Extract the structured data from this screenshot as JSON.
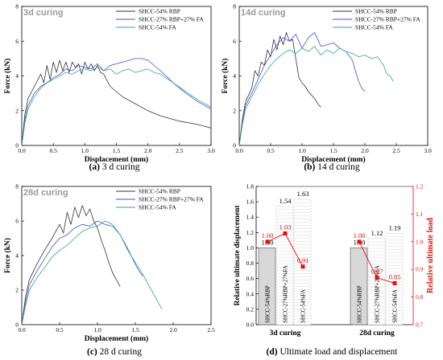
{
  "colors": {
    "rbp": "#333333",
    "mix": "#4a4ae6",
    "fa": "#2aa88a",
    "red": "#e01010",
    "bar_fill": "#d8d8d8"
  },
  "panels": {
    "a": {
      "title": "3d curing",
      "caption_letter": "(a)",
      "caption_text": " 3 d curing"
    },
    "b": {
      "title": "14d curing",
      "caption_letter": "(b)",
      "caption_text": " 14 d curing"
    },
    "c": {
      "title": "28d curing",
      "caption_letter": "(c)",
      "caption_text": " 28 d curing"
    },
    "d": {
      "caption_letter": "(d)",
      "caption_text": " Ultimate load and displacement"
    }
  },
  "chart_data": [
    {
      "id": "a",
      "type": "line",
      "title": "3d curing",
      "xlabel": "Displacement (mm)",
      "ylabel": "Force (kN)",
      "xlim": [
        0,
        3.0
      ],
      "ylim": [
        0,
        8
      ],
      "xticks": [
        "0.0",
        "0.5",
        "1.0",
        "1.5",
        "2.0",
        "2.5",
        "3.0"
      ],
      "yticks": [
        "0",
        "2",
        "4",
        "6",
        "8"
      ],
      "legend": "top-right",
      "series": [
        {
          "name": "SHCC-54% RBP",
          "color": "#333333",
          "x": [
            0,
            0.05,
            0.1,
            0.2,
            0.3,
            0.35,
            0.4,
            0.45,
            0.5,
            0.55,
            0.6,
            0.65,
            0.7,
            0.75,
            0.8,
            0.85,
            0.9,
            0.95,
            1.0,
            1.05,
            1.1,
            1.15,
            1.2,
            1.25,
            1.3,
            1.4,
            1.6,
            1.8,
            2.0,
            2.2,
            2.5,
            2.8,
            3.0
          ],
          "y": [
            0,
            1.8,
            2.7,
            3.4,
            4.1,
            3.6,
            4.6,
            3.8,
            4.8,
            4.2,
            4.9,
            4.3,
            4.8,
            4.2,
            4.8,
            4.5,
            4.7,
            4.1,
            4.8,
            4.4,
            4.7,
            4.3,
            4.6,
            4.2,
            4.1,
            3.4,
            2.8,
            2.4,
            2.0,
            1.7,
            1.4,
            1.2,
            1.0
          ]
        },
        {
          "name": "SHCC-27% RBP+27% FA",
          "color": "#4a4ae6",
          "x": [
            0,
            0.05,
            0.1,
            0.2,
            0.3,
            0.4,
            0.5,
            0.6,
            0.7,
            0.8,
            0.9,
            1.0,
            1.1,
            1.2,
            1.3,
            1.4,
            1.5,
            1.6,
            1.7,
            1.8,
            1.9,
            2.0,
            2.2,
            2.4,
            2.6,
            2.8,
            3.0
          ],
          "y": [
            0,
            1.5,
            2.3,
            3.0,
            3.4,
            3.6,
            3.9,
            4.1,
            4.4,
            4.3,
            4.6,
            4.5,
            4.4,
            4.7,
            4.3,
            4.6,
            4.7,
            4.8,
            4.9,
            5.0,
            5.0,
            4.9,
            4.3,
            3.6,
            3.0,
            2.5,
            2.1
          ]
        },
        {
          "name": "SHCC-54% FA",
          "color": "#2aa88a",
          "x": [
            0,
            0.05,
            0.1,
            0.2,
            0.3,
            0.4,
            0.5,
            0.6,
            0.7,
            0.8,
            0.9,
            1.0,
            1.1,
            1.2,
            1.3,
            1.4,
            1.5,
            1.6,
            1.7,
            1.8,
            1.9,
            2.0,
            2.1,
            2.2,
            2.4,
            2.6,
            2.8,
            3.0
          ],
          "y": [
            0,
            1.3,
            2.1,
            2.8,
            3.3,
            3.6,
            3.8,
            4.0,
            4.2,
            4.1,
            4.3,
            4.4,
            4.3,
            4.5,
            4.3,
            4.4,
            4.1,
            4.3,
            4.4,
            4.2,
            4.3,
            4.4,
            4.2,
            4.1,
            3.6,
            3.1,
            2.6,
            2.2
          ]
        }
      ]
    },
    {
      "id": "b",
      "type": "line",
      "title": "14d curing",
      "xlabel": "Displacement (mm)",
      "ylabel": "Force (kN)",
      "xlim": [
        0,
        3.0
      ],
      "ylim": [
        0,
        8
      ],
      "xticks": [
        "0.0",
        "0.5",
        "1.0",
        "1.5",
        "2.0",
        "2.5",
        "3.0"
      ],
      "yticks": [
        "0",
        "2",
        "4",
        "6",
        "8"
      ],
      "legend": "top-right",
      "series": [
        {
          "name": "SHCC-54% RBP",
          "color": "#333333",
          "x": [
            0,
            0.05,
            0.1,
            0.2,
            0.25,
            0.3,
            0.35,
            0.4,
            0.45,
            0.5,
            0.55,
            0.6,
            0.65,
            0.7,
            0.75,
            0.8,
            0.85,
            0.9,
            0.95,
            1.0,
            1.05,
            1.1,
            1.15,
            1.2,
            1.25,
            1.3
          ],
          "y": [
            0,
            1.5,
            2.5,
            3.3,
            4.3,
            4.0,
            4.8,
            4.6,
            5.5,
            5.1,
            6.1,
            5.5,
            6.3,
            5.8,
            6.5,
            6.0,
            6.1,
            5.0,
            3.9,
            3.6,
            3.4,
            3.1,
            2.9,
            2.7,
            2.4,
            2.2
          ]
        },
        {
          "name": "SHCC-27% RBP+27% FA",
          "color": "#4a4ae6",
          "x": [
            0,
            0.05,
            0.1,
            0.2,
            0.3,
            0.4,
            0.5,
            0.6,
            0.7,
            0.8,
            0.9,
            1.0,
            1.1,
            1.2,
            1.3,
            1.4,
            1.5,
            1.6,
            1.7,
            1.8,
            1.85,
            1.9,
            1.95,
            2.0
          ],
          "y": [
            0,
            1.3,
            2.3,
            3.0,
            3.8,
            4.6,
            5.2,
            5.8,
            6.2,
            6.0,
            6.4,
            5.6,
            6.2,
            6.5,
            5.7,
            5.8,
            5.9,
            5.6,
            5.4,
            4.9,
            4.3,
            3.7,
            3.3,
            3.1
          ]
        },
        {
          "name": "SHCC-54% FA",
          "color": "#2aa88a",
          "x": [
            0,
            0.05,
            0.1,
            0.2,
            0.3,
            0.4,
            0.5,
            0.6,
            0.7,
            0.8,
            0.9,
            1.0,
            1.1,
            1.2,
            1.3,
            1.4,
            1.5,
            1.6,
            1.7,
            1.8,
            1.9,
            2.0,
            2.1,
            2.2,
            2.3,
            2.35,
            2.4,
            2.45
          ],
          "y": [
            0,
            1.2,
            2.1,
            2.8,
            3.5,
            4.1,
            4.6,
            5.0,
            5.3,
            5.5,
            5.3,
            5.6,
            5.4,
            5.7,
            5.2,
            5.5,
            5.3,
            5.6,
            5.4,
            5.3,
            5.1,
            5.2,
            5.0,
            5.1,
            4.6,
            4.1,
            4.0,
            3.7
          ]
        }
      ]
    },
    {
      "id": "c",
      "type": "line",
      "title": "28d curing",
      "xlabel": "Displacement (mm)",
      "ylabel": "Force (kN)",
      "xlim": [
        0,
        2.5
      ],
      "ylim": [
        0,
        8
      ],
      "xticks": [
        "0.0",
        "0.5",
        "1.0",
        "1.5",
        "2.0",
        "2.5"
      ],
      "yticks": [
        "0",
        "2",
        "4",
        "6",
        "8"
      ],
      "legend": "top-right",
      "series": [
        {
          "name": "SHCC-54% RBP",
          "color": "#333333",
          "x": [
            0,
            0.05,
            0.1,
            0.2,
            0.3,
            0.4,
            0.5,
            0.55,
            0.6,
            0.65,
            0.7,
            0.75,
            0.8,
            0.85,
            0.9,
            0.95,
            1.0,
            1.05,
            1.1,
            1.15,
            1.2,
            1.25,
            1.3
          ],
          "y": [
            0,
            1.6,
            2.6,
            3.5,
            4.3,
            5.0,
            5.8,
            5.3,
            6.5,
            5.8,
            6.8,
            6.2,
            6.9,
            6.3,
            6.7,
            6.0,
            5.6,
            4.9,
            4.3,
            3.6,
            3.0,
            2.6,
            2.2
          ]
        },
        {
          "name": "SHCC-27% RBP+27% FA",
          "color": "#4a4ae6",
          "x": [
            0,
            0.05,
            0.1,
            0.2,
            0.3,
            0.4,
            0.5,
            0.6,
            0.7,
            0.8,
            0.9,
            1.0,
            1.1,
            1.2,
            1.3,
            1.4,
            1.5,
            1.55,
            1.6
          ],
          "y": [
            0,
            1.3,
            2.3,
            3.1,
            3.8,
            4.5,
            5.0,
            5.2,
            5.6,
            5.8,
            5.7,
            6.0,
            5.8,
            5.7,
            5.2,
            4.4,
            3.5,
            3.1,
            2.8
          ]
        },
        {
          "name": "SHCC-54% FA",
          "color": "#2aa88a",
          "x": [
            0,
            0.05,
            0.1,
            0.2,
            0.3,
            0.4,
            0.5,
            0.6,
            0.7,
            0.8,
            0.9,
            1.0,
            1.1,
            1.2,
            1.3,
            1.4,
            1.5,
            1.6,
            1.7,
            1.8,
            1.85
          ],
          "y": [
            0,
            1.1,
            2.0,
            2.7,
            3.3,
            3.9,
            4.3,
            4.6,
            5.0,
            5.4,
            5.6,
            5.7,
            6.0,
            5.8,
            5.2,
            4.3,
            3.6,
            2.9,
            2.1,
            1.3,
            0.9
          ]
        }
      ]
    },
    {
      "id": "d",
      "type": "bar",
      "title": "",
      "ylabel_left": "Relative ultimate displacement",
      "ylabel_right": "Relative ultimate load",
      "ylim_left": [
        0,
        1.8
      ],
      "ylim_right": [
        0.7,
        1.2
      ],
      "yticks_left": [
        "0.0",
        "0.2",
        "0.4",
        "0.6",
        "0.8",
        "1.0",
        "1.2",
        "1.4",
        "1.6",
        "1.8"
      ],
      "yticks_right": [
        "0.7",
        "0.8",
        "0.9",
        "1.0",
        "1.1",
        "1.2"
      ],
      "groups": [
        {
          "label": "3d curing",
          "bar_labels": [
            "SHCC-54%RBP",
            "SHCC-27%RBP+27%FA",
            "SHCC-54%FA"
          ],
          "displacement": [
            1.0,
            1.54,
            1.63
          ],
          "displacement_labels": [
            "1.00",
            "1.54",
            "1.63"
          ],
          "load": [
            1.0,
            1.03,
            0.91
          ],
          "load_labels": [
            "1.00",
            "1.03",
            "0.91"
          ]
        },
        {
          "label": "28d curing",
          "bar_labels": [
            "SHCC-54%RBP",
            "SHCC-27%RBP+27%FA",
            "SHCC-54%FA"
          ],
          "displacement": [
            1.0,
            1.12,
            1.19
          ],
          "displacement_labels": [
            "1.00",
            "1.12",
            "1.19"
          ],
          "load": [
            1.0,
            0.87,
            0.85
          ],
          "load_labels": [
            "1.00",
            "0.87",
            "0.85"
          ]
        }
      ]
    }
  ]
}
